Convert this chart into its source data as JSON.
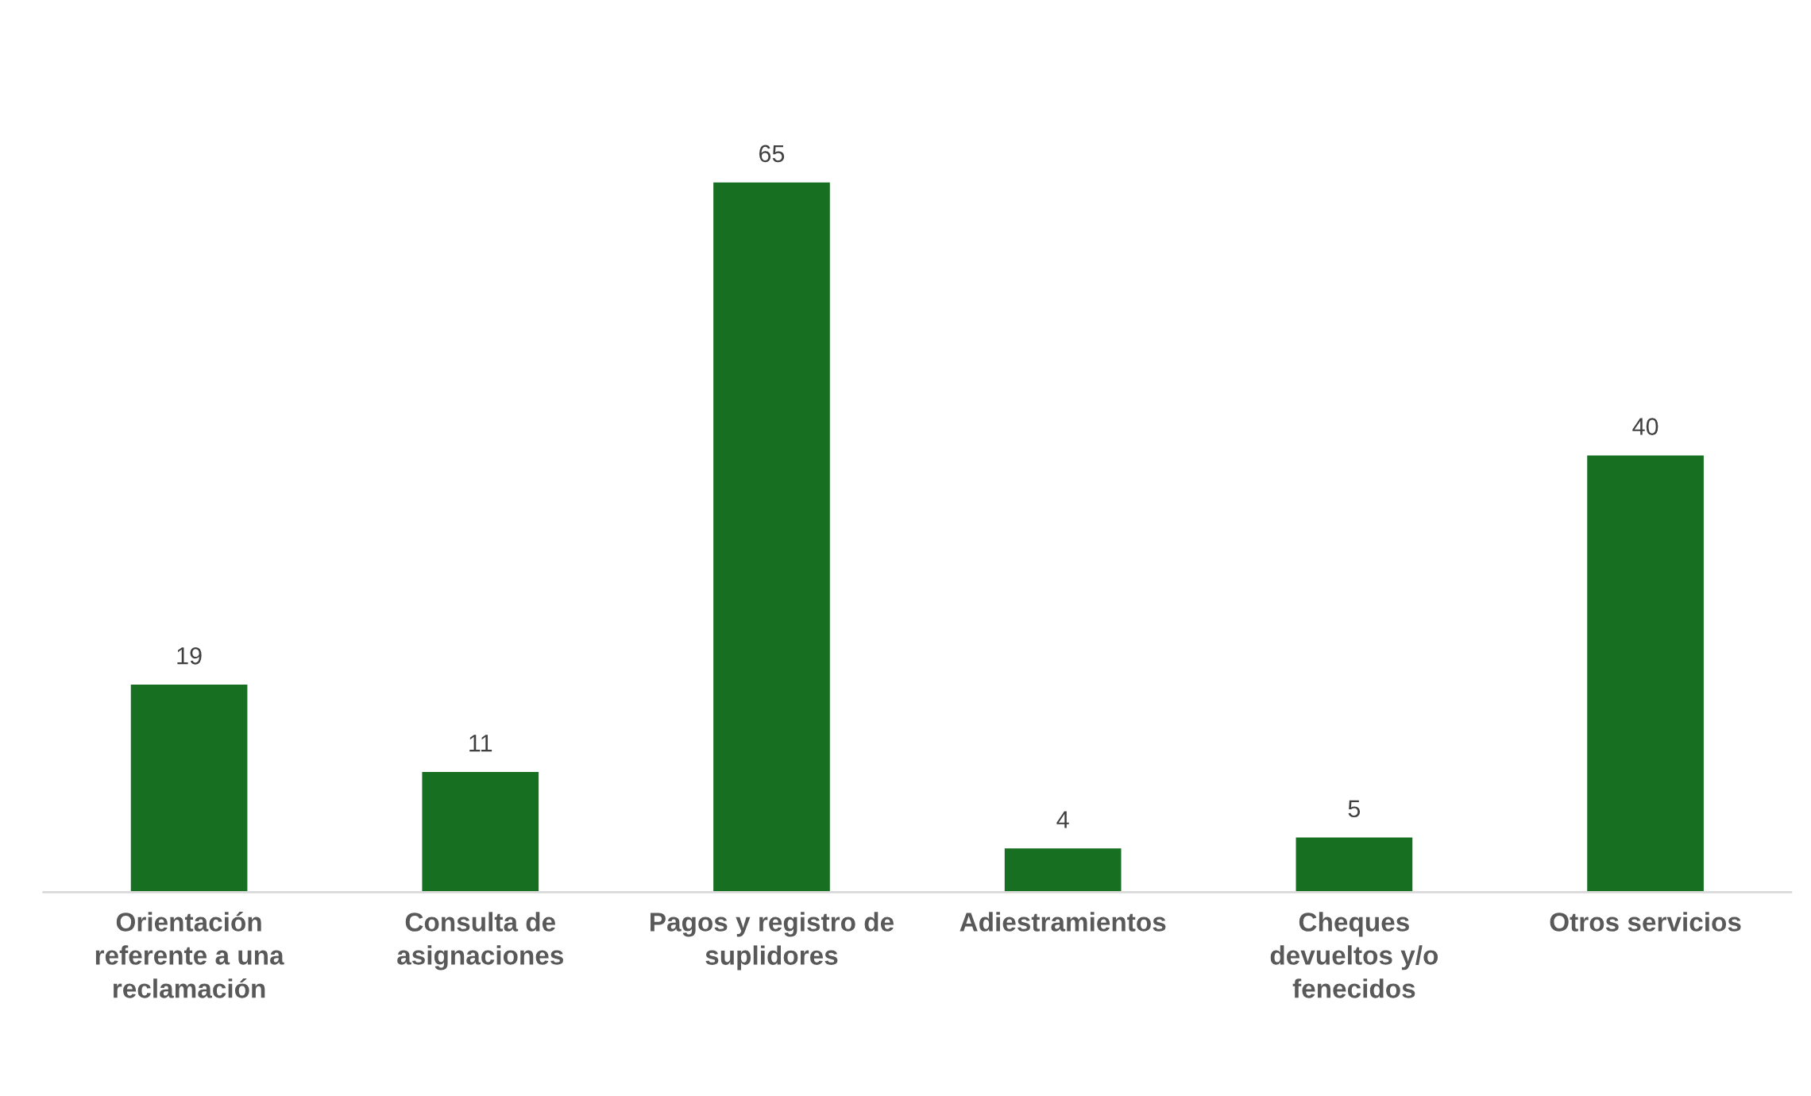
{
  "chart_data": {
    "type": "bar",
    "categories": [
      "Orientación\nreferente a una\nreclamación",
      "Consulta de\nasignaciones",
      "Pagos y registro de\nsuplidores",
      "Adiestramientos",
      "Cheques\ndevueltos y/o\nfenecidos",
      "Otros servicios"
    ],
    "values": [
      19,
      11,
      65,
      4,
      5,
      40
    ],
    "color": "#176f22",
    "data_labels": true,
    "grid": false,
    "legend": false
  }
}
